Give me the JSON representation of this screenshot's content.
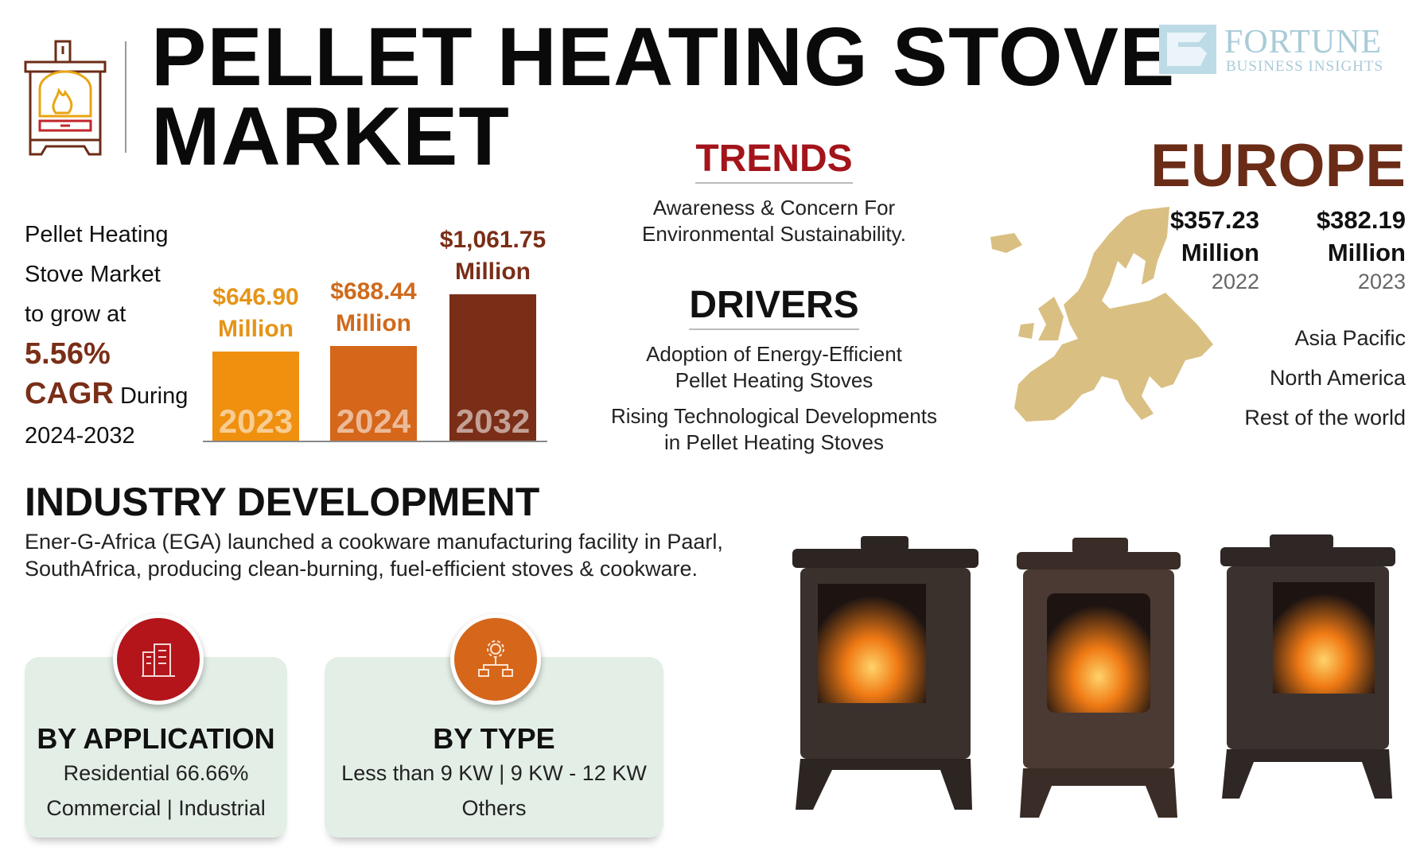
{
  "header": {
    "title_line1": "PELLET HEATING STOVE",
    "title_line2": "MARKET",
    "logo": {
      "brand": "FORTUNE",
      "tagline": "BUSINESS INSIGHTS"
    },
    "icon": "pellet-stove-icon"
  },
  "growth": {
    "line1": "Pellet Heating",
    "line2": "Stove Market",
    "line3": "to grow at",
    "cagr_value": "5.56%",
    "cagr_label": "CAGR",
    "during": "During",
    "period": "2024-2032"
  },
  "chart_data": {
    "type": "bar",
    "categories": [
      "2023",
      "2024",
      "2032"
    ],
    "values": [
      646.9,
      688.44,
      1061.75
    ],
    "labels": [
      {
        "amount": "$646.90",
        "unit": "Million"
      },
      {
        "amount": "$688.44",
        "unit": "Million"
      },
      {
        "amount": "$1,061.75",
        "unit": "Million"
      }
    ],
    "colors": [
      "#f0900f",
      "#d5661a",
      "#7a2e17"
    ],
    "label_colors": [
      "#e59418",
      "#cf6a1c",
      "#7a2e17"
    ]
  },
  "trends": {
    "heading": "TRENDS",
    "items": [
      "Awareness & Concern For",
      "Environmental Sustainability."
    ]
  },
  "drivers": {
    "heading": "DRIVERS",
    "items": [
      [
        "Adoption of Energy-Efficient",
        "Pellet Heating Stoves"
      ],
      [
        "Rising Technological Developments",
        "in Pellet Heating Stoves"
      ]
    ]
  },
  "region": {
    "name": "EUROPE",
    "values": [
      {
        "amount": "$357.23",
        "unit": "Million",
        "year": "2022"
      },
      {
        "amount": "$382.19",
        "unit": "Million",
        "year": "2023"
      }
    ],
    "others": [
      "Asia Pacific",
      "North America",
      "Rest of the world"
    ],
    "map_color": "#d9bf82"
  },
  "industry": {
    "heading": "INDUSTRY DEVELOPMENT",
    "text_line1": "Ener-G-Africa (EGA) launched a cookware manufacturing facility in Paarl,",
    "text_line2": "SouthAfrica, producing clean-burning, fuel-efficient stoves & cookware."
  },
  "segments": {
    "application": {
      "heading": "BY APPLICATION",
      "line1": "Residential 66.66%",
      "line2": "Commercial  |  Industrial",
      "icon": "buildings-icon",
      "color": "#b3151a"
    },
    "type": {
      "heading": "BY TYPE",
      "line1": "Less than 9 KW  |  9 KW - 12 KW",
      "line2": "Others",
      "icon": "gear-hierarchy-icon",
      "color": "#d5661a"
    }
  }
}
